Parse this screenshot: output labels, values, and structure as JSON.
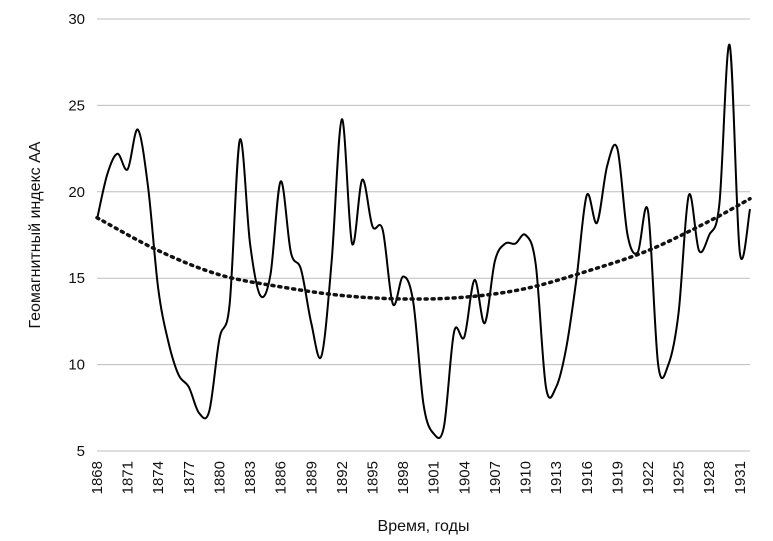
{
  "chart_data": {
    "type": "line",
    "title": "",
    "xlabel": "Время, годы",
    "ylabel": "Геомагнитный индекс АА",
    "xlim": [
      1868,
      1932
    ],
    "ylim": [
      5,
      30
    ],
    "y_ticks": [
      5,
      10,
      15,
      20,
      25,
      30
    ],
    "x_ticks": [
      1868,
      1871,
      1874,
      1877,
      1880,
      1883,
      1886,
      1889,
      1892,
      1895,
      1898,
      1901,
      1904,
      1907,
      1910,
      1913,
      1916,
      1919,
      1922,
      1925,
      1928,
      1931
    ],
    "grid": "horizontal",
    "legend": "none",
    "series": [
      {
        "style": "solid",
        "x": [
          1868,
          1869,
          1870,
          1871,
          1872,
          1873,
          1874,
          1875,
          1876,
          1877,
          1878,
          1879,
          1880,
          1881,
          1882,
          1883,
          1884,
          1885,
          1886,
          1887,
          1888,
          1889,
          1890,
          1891,
          1892,
          1893,
          1894,
          1895,
          1896,
          1897,
          1898,
          1899,
          1900,
          1901,
          1902,
          1903,
          1904,
          1905,
          1906,
          1907,
          1908,
          1909,
          1910,
          1911,
          1912,
          1913,
          1914,
          1915,
          1916,
          1917,
          1918,
          1919,
          1920,
          1921,
          1922,
          1923,
          1924,
          1925,
          1926,
          1927,
          1928,
          1929,
          1930,
          1931,
          1932
        ],
        "values": [
          18.4,
          21.0,
          22.2,
          21.3,
          23.6,
          20.3,
          14.4,
          11.3,
          9.4,
          8.7,
          7.2,
          7.3,
          11.5,
          13.5,
          23.0,
          17.0,
          14.0,
          15.2,
          20.6,
          16.5,
          15.5,
          12.4,
          10.5,
          16.0,
          24.2,
          17.0,
          20.7,
          18.0,
          17.8,
          13.5,
          15.1,
          13.6,
          7.7,
          6.0,
          6.4,
          11.9,
          11.6,
          14.9,
          12.4,
          16.0,
          17.0,
          17.0,
          17.5,
          15.8,
          8.7,
          8.7,
          11.0,
          15.0,
          19.8,
          18.2,
          21.5,
          22.5,
          17.5,
          16.5,
          18.9,
          10.0,
          10.0,
          13.0,
          19.8,
          16.6,
          17.5,
          19.3,
          28.5,
          16.5,
          19.0
        ]
      },
      {
        "style": "dotted",
        "x": [
          1868,
          1874,
          1880,
          1886,
          1892,
          1898,
          1904,
          1910,
          1916,
          1922,
          1928,
          1932
        ],
        "values": [
          18.5,
          16.6,
          15.2,
          14.5,
          14.0,
          13.8,
          13.9,
          14.4,
          15.4,
          16.6,
          18.3,
          19.6
        ]
      }
    ]
  }
}
